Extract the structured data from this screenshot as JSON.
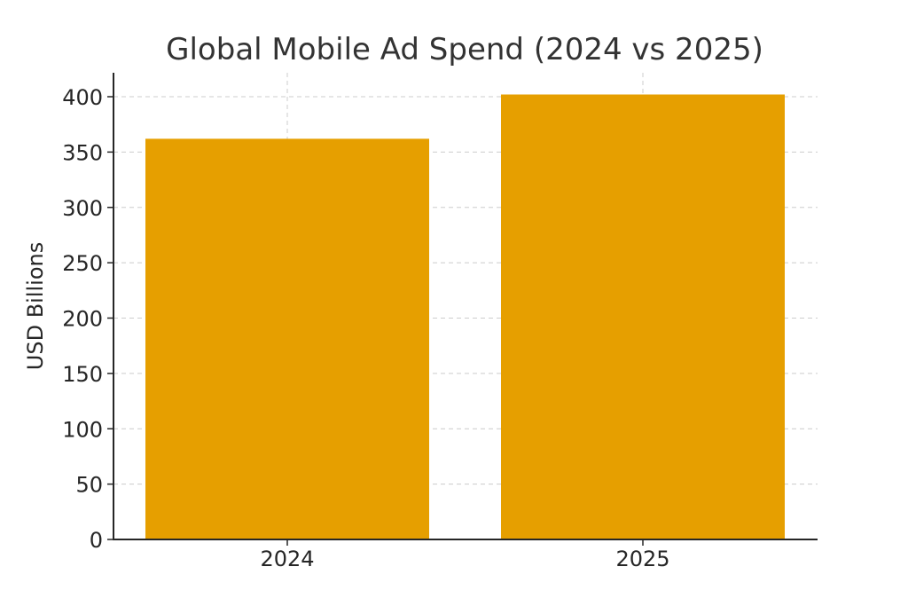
{
  "chart_data": {
    "type": "bar",
    "title": "Global Mobile Ad Spend (2024 vs 2025)",
    "xlabel": "",
    "ylabel": "USD Billions",
    "categories": [
      "2024",
      "2025"
    ],
    "values": [
      362,
      402
    ],
    "ylim": [
      0,
      420
    ],
    "yticks": [
      0,
      50,
      100,
      150,
      200,
      250,
      300,
      350,
      400
    ],
    "grid": true,
    "bar_color": "#E69F00"
  }
}
